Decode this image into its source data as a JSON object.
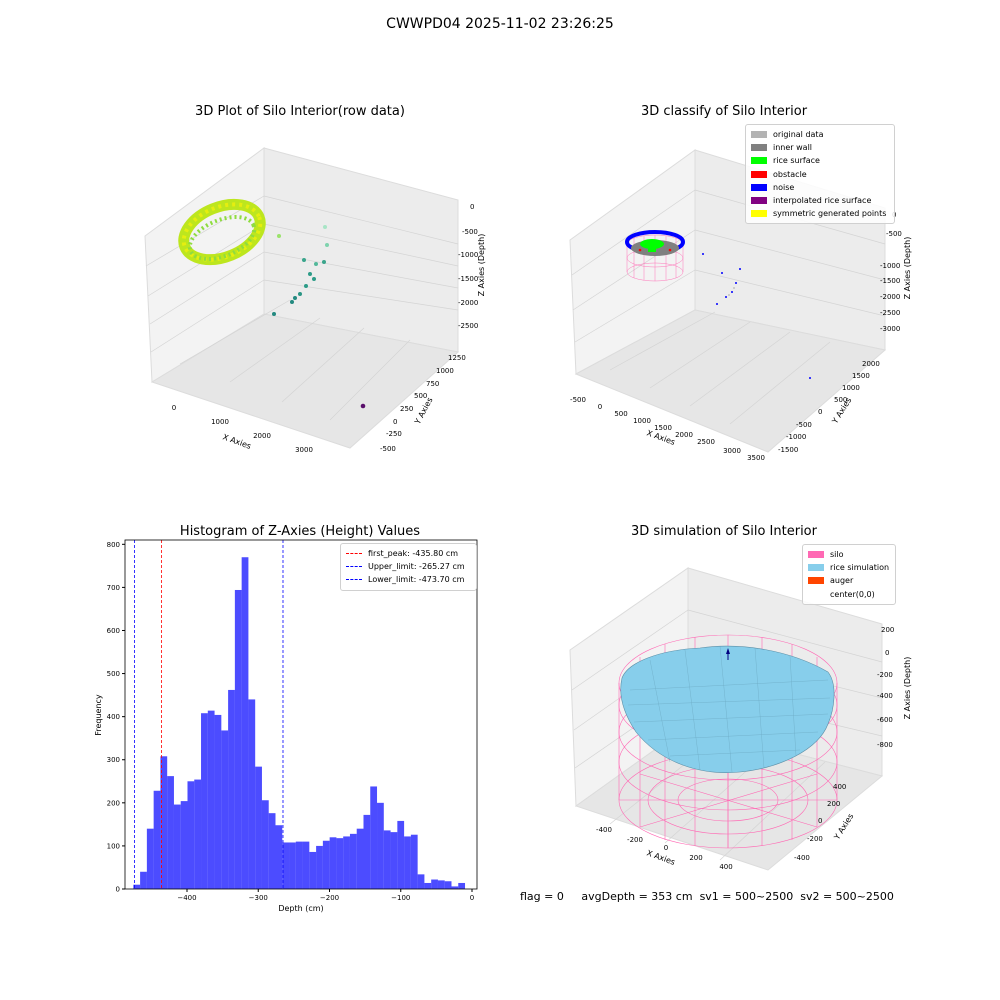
{
  "suptitle": "CWWPD04 2025-11-02 23:26:25",
  "panels": {
    "raw": {
      "title": "3D Plot of Silo Interior(row data)",
      "xlabel": "X Axies",
      "ylabel": "Y Axies",
      "zlabel": "Z Axies (Depth)",
      "xticks": [
        "0",
        "1000",
        "2000",
        "3000"
      ],
      "yticks": [
        "-500",
        "-250",
        "0",
        "250",
        "500",
        "750",
        "1000",
        "1250"
      ],
      "zticks": [
        "0",
        "-500",
        "-1000",
        "-1500",
        "-2000",
        "-2500"
      ]
    },
    "classify": {
      "title": "3D classify of Silo Interior",
      "xlabel": "X Axies",
      "ylabel": "Y Axies",
      "zlabel": "Z Axies (Depth)",
      "xticks": [
        "-500",
        "0",
        "500",
        "1000",
        "1500",
        "2000",
        "2500",
        "3000",
        "3500"
      ],
      "yticks": [
        "-1500",
        "-1000",
        "-500",
        "0",
        "500",
        "1000",
        "1500",
        "2000"
      ],
      "zticks": [
        "0",
        "-500",
        "-1000",
        "-1500",
        "-2000",
        "-2500",
        "-3000"
      ],
      "legend": [
        {
          "label": "original data",
          "color": "#b3b3b3"
        },
        {
          "label": "inner wall",
          "color": "#808080"
        },
        {
          "label": "rice surface",
          "color": "#00ff00"
        },
        {
          "label": "obstacle",
          "color": "#ff0000"
        },
        {
          "label": "noise",
          "color": "#0000ff"
        },
        {
          "label": "interpolated rice surface",
          "color": "#800080"
        },
        {
          "label": "symmetric generated points",
          "color": "#ffff00"
        }
      ]
    },
    "simulation": {
      "title": "3D simulation of Silo Interior",
      "xlabel": "X Axies",
      "ylabel": "Y Axies",
      "zlabel": "Z Axies (Depth)",
      "xticks": [
        "-400",
        "-200",
        "0",
        "200",
        "400"
      ],
      "yticks": [
        "-400",
        "-200",
        "0",
        "200",
        "400"
      ],
      "zticks": [
        "200",
        "0",
        "-200",
        "-400",
        "-600",
        "-800"
      ],
      "legend": [
        {
          "label": "silo",
          "color": "#ff69b4"
        },
        {
          "label": "rice simulation",
          "color": "#87ceeb"
        },
        {
          "label": "auger",
          "color": "#ff4500"
        },
        {
          "label": "center(0,0)",
          "color": ""
        }
      ]
    }
  },
  "chart_data": {
    "type": "bar",
    "title": "Histogram of Z-Axies (Height) Values",
    "xlabel": "Depth (cm)",
    "ylabel": "Frequency",
    "xlim": [
      -487,
      7
    ],
    "ylim": [
      0,
      810
    ],
    "xticks": [
      -400,
      -300,
      -200,
      -100,
      0
    ],
    "yticks": [
      0,
      100,
      200,
      300,
      400,
      500,
      600,
      700,
      800
    ],
    "bin_start": -475.3,
    "bin_width": 9.5,
    "bar_color": "#0000ff",
    "values": [
      10,
      40,
      140,
      228,
      308,
      262,
      196,
      204,
      250,
      254,
      408,
      414,
      404,
      368,
      462,
      694,
      770,
      440,
      284,
      206,
      176,
      148,
      108,
      108,
      110,
      110,
      86,
      100,
      112,
      120,
      118,
      122,
      128,
      140,
      172,
      238,
      200,
      136,
      132,
      158,
      122,
      126,
      34,
      14,
      22,
      20,
      18,
      6,
      14
    ],
    "lines": [
      {
        "label": "first_peak: -435.80 cm",
        "x": -435.8,
        "color": "#ff0000"
      },
      {
        "label": "Upper_limit: -265.27 cm",
        "x": -265.27,
        "color": "#0000ff"
      },
      {
        "label": "Lower_limit: -473.70 cm",
        "x": -473.7,
        "color": "#0000ff"
      }
    ],
    "legend_position": "upper right"
  },
  "footer": {
    "flag": "flag = 0",
    "avg": "avgDepth = 353 cm",
    "sv1": "sv1 = 500~2500",
    "sv2": "sv2 = 500~2500"
  }
}
